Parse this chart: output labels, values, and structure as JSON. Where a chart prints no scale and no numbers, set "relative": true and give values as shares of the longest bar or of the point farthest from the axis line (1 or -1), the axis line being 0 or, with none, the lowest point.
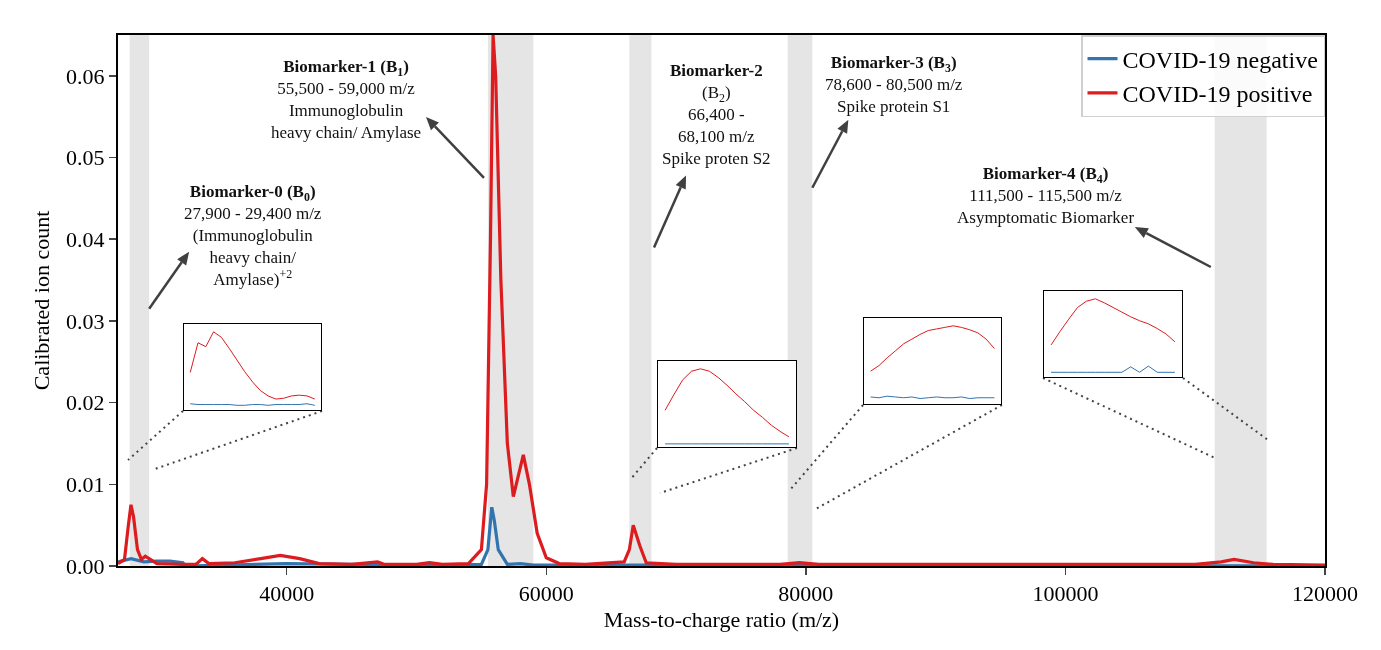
{
  "chart_data": [
    {
      "type": "line",
      "xlabel": "Mass-to-charge ratio (m/z)",
      "ylabel": "Calibrated ion count",
      "xlim": [
        27000,
        120000
      ],
      "ylim": [
        0,
        0.065
      ],
      "xticks": [
        40000,
        60000,
        80000,
        100000,
        120000
      ],
      "yticks": [
        {
          "value": 0,
          "label": "0.00"
        },
        {
          "value": 0.01,
          "label": "0.01"
        },
        {
          "value": 0.02,
          "label": "0.02"
        },
        {
          "value": 0.03,
          "label": "0.03"
        },
        {
          "value": 0.04,
          "label": "0.04"
        },
        {
          "value": 0.05,
          "label": "0.05"
        },
        {
          "value": 0.06,
          "label": "0.06"
        }
      ],
      "grid": false,
      "legend": "top right",
      "series": [
        {
          "name": "COVID-19 negative",
          "color": "#3274b0",
          "x": [
            27000,
            28000,
            29000,
            30000,
            31000,
            32000,
            32200,
            40000,
            50000,
            55000,
            55500,
            55800,
            56000,
            56300,
            57000,
            58000,
            59000,
            67000,
            120000
          ],
          "values": [
            0.0005,
            0.0009,
            0.0005,
            0.0006,
            0.0006,
            0.0004,
            0.0,
            0.0003,
            0.0001,
            0.0002,
            0.002,
            0.0072,
            0.0055,
            0.002,
            0.0002,
            0.0003,
            0.0001,
            0.0001,
            0.0
          ]
        },
        {
          "name": "COVID-19 positive",
          "color": "#dd1c1f",
          "x": [
            27000,
            27500,
            27800,
            28000,
            28200,
            28500,
            28800,
            29100,
            29400,
            30000,
            32000,
            33000,
            33500,
            34000,
            36000,
            38000,
            39500,
            41000,
            42500,
            45000,
            47000,
            47500,
            50000,
            51000,
            52000,
            54000,
            55000,
            55400,
            55700,
            55900,
            56100,
            56500,
            57000,
            57460,
            58230,
            58700,
            59300,
            60000,
            61000,
            63000,
            66000,
            66400,
            66700,
            67200,
            67700,
            70000,
            78000,
            79500,
            81000,
            90000,
            100000,
            110000,
            112000,
            113000,
            114500,
            116000,
            120000
          ],
          "values": [
            0.0003,
            0.0008,
            0.005,
            0.0075,
            0.006,
            0.002,
            0.0008,
            0.0012,
            0.0009,
            0.0003,
            0.0002,
            0.0002,
            0.0009,
            0.0003,
            0.0004,
            0.0009,
            0.0013,
            0.0009,
            0.0003,
            0.0002,
            0.0005,
            0.0002,
            0.0002,
            0.0004,
            0.0002,
            0.0003,
            0.002,
            0.01,
            0.04,
            0.065,
            0.06,
            0.035,
            0.015,
            0.0085,
            0.0136,
            0.01,
            0.004,
            0.001,
            0.0003,
            0.0002,
            0.0005,
            0.002,
            0.005,
            0.0025,
            0.0004,
            0.0002,
            0.0002,
            0.0004,
            0.0002,
            0.0002,
            0.0002,
            0.0002,
            0.0005,
            0.0008,
            0.0004,
            0.0002,
            0.0001
          ]
        }
      ],
      "bands": [
        {
          "axis": "x",
          "from": 27900,
          "to": 29400,
          "color": "#e5e5e5"
        },
        {
          "axis": "x",
          "from": 55500,
          "to": 59000,
          "color": "#e5e5e5"
        },
        {
          "axis": "x",
          "from": 66400,
          "to": 68100,
          "color": "#e5e5e5"
        },
        {
          "axis": "x",
          "from": 78600,
          "to": 80500,
          "color": "#e5e5e5"
        },
        {
          "axis": "x",
          "from": 111500,
          "to": 115500,
          "color": "#e5e5e5"
        }
      ],
      "annotations": [
        {
          "text": "Biomarker-0 (B$_{0}$)\n27,900 - 29,400 m/z\n(Immunoglobulin\nheavy chain/\nAmylase)$^{+2}$",
          "x": 29400,
          "y": 0.0315
        },
        {
          "text": "Biomarker-1 (B$_{1}$)\n55,500 - 59,000 m/z\nImmunoglobulin\nheavy chain/ Amylase",
          "x": 55200,
          "y": 0.0475
        },
        {
          "text": "Biomarker-2\n(B$_{2}$)\n66,400 -\n68,100 m/z\nSpike proten S2",
          "x": 68300,
          "y": 0.039
        },
        {
          "text": "Biomarker-3 (B$_{3}$)\n78,600 - 80,500 m/z\nSpike protein S1",
          "x": 80500,
          "y": 0.0463
        },
        {
          "text": "Biomarker-4 (B$_{4}$)\n111,500 - 115,500 m/z\nAsymptomatic Biomarker",
          "x": 111200,
          "y": 0.0366
        }
      ]
    },
    {
      "type": "line",
      "relative": true,
      "categories": [
        null,
        null,
        null,
        null,
        null,
        null,
        null,
        null,
        null,
        null,
        null,
        null,
        null,
        null,
        null,
        null,
        null
      ],
      "series": [
        {
          "color": "#3274b0",
          "values": [
            0.08,
            0.07,
            0.07,
            0.07,
            0.07,
            0.07,
            0.06,
            0.06,
            0.07,
            0.07,
            0.06,
            0.07,
            0.07,
            0.07,
            0.07,
            0.08,
            0.06
          ]
        },
        {
          "color": "#dd1c1f",
          "values": [
            0.48,
            0.86,
            0.81,
            1.0,
            0.93,
            0.79,
            0.64,
            0.49,
            0.36,
            0.25,
            0.18,
            0.14,
            0.15,
            0.18,
            0.19,
            0.18,
            0.14
          ]
        }
      ]
    },
    {
      "type": "line",
      "relative": true,
      "categories": [
        null,
        null,
        null,
        null,
        null,
        null,
        null,
        null,
        null,
        null,
        null,
        null,
        null,
        null,
        null
      ],
      "series": [
        {
          "color": "#3274b0",
          "values": [
            0.04,
            0.04,
            0.04,
            0.04,
            0.04,
            0.04,
            0.04,
            0.04,
            0.04,
            0.04,
            0.04,
            0.04,
            0.04,
            0.04,
            0.04
          ]
        },
        {
          "color": "#dd1c1f",
          "values": [
            0.47,
            0.67,
            0.86,
            0.97,
            1.0,
            0.97,
            0.89,
            0.79,
            0.68,
            0.58,
            0.47,
            0.38,
            0.28,
            0.2,
            0.13
          ]
        }
      ]
    },
    {
      "type": "line",
      "relative": true,
      "categories": [
        null,
        null,
        null,
        null,
        null,
        null,
        null,
        null,
        null,
        null,
        null,
        null,
        null,
        null,
        null,
        null
      ],
      "series": [
        {
          "color": "#3274b0",
          "values": [
            0.09,
            0.08,
            0.1,
            0.09,
            0.08,
            0.09,
            0.07,
            0.08,
            0.09,
            0.08,
            0.08,
            0.09,
            0.07,
            0.08,
            0.08,
            0.08
          ]
        },
        {
          "color": "#dd1c1f",
          "values": [
            0.42,
            0.49,
            0.59,
            0.68,
            0.77,
            0.83,
            0.89,
            0.94,
            0.96,
            0.98,
            1.0,
            0.98,
            0.95,
            0.91,
            0.83,
            0.71
          ]
        }
      ]
    },
    {
      "type": "line",
      "relative": true,
      "categories": [
        null,
        null,
        null,
        null,
        null,
        null,
        null,
        null,
        null,
        null,
        null,
        null,
        null,
        null,
        null
      ],
      "series": [
        {
          "color": "#3274b0",
          "values": [
            0.06,
            0.06,
            0.06,
            0.06,
            0.06,
            0.06,
            0.06,
            0.06,
            0.06,
            0.13,
            0.06,
            0.14,
            0.06,
            0.06,
            0.06
          ]
        },
        {
          "color": "#dd1c1f",
          "values": [
            0.41,
            0.58,
            0.74,
            0.89,
            0.97,
            1.0,
            0.95,
            0.89,
            0.83,
            0.77,
            0.72,
            0.68,
            0.62,
            0.55,
            0.45
          ]
        }
      ]
    }
  ]
}
